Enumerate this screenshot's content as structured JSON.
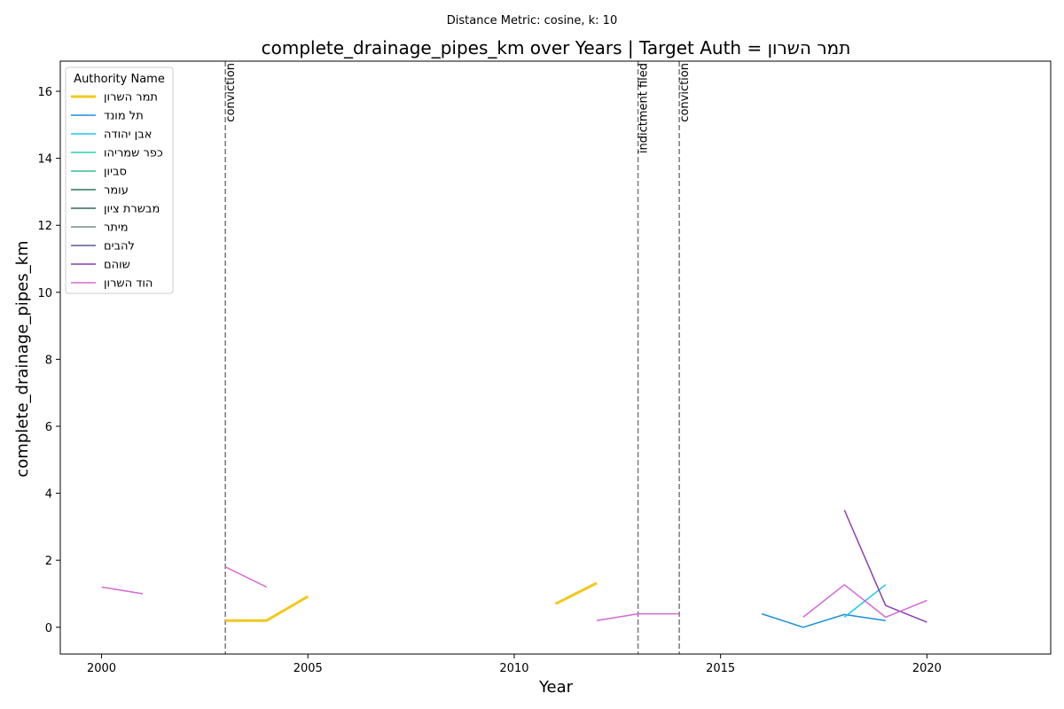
{
  "chart_data": {
    "type": "line",
    "suptitle": "Distance Metric: cosine, k: 10",
    "title": "complete_drainage_pipes_km over Years | Target Auth = תמר השרון",
    "xlabel": "Year",
    "ylabel": "complete_drainage_pipes_km",
    "xlim": [
      1999,
      2023
    ],
    "ylim": [
      -0.8,
      16.9
    ],
    "xticks": [
      2000,
      2005,
      2010,
      2015,
      2020
    ],
    "yticks": [
      0,
      2,
      4,
      6,
      8,
      10,
      12,
      14,
      16
    ],
    "grid": false,
    "legend_title": "Authority Name",
    "legend_position": "top-left",
    "events": [
      {
        "x": 2003,
        "label": "conviction"
      },
      {
        "x": 2013,
        "label": "indictment filed"
      },
      {
        "x": 2014,
        "label": "conviction"
      }
    ],
    "series": [
      {
        "name": "תמר השרון",
        "color": "#f2c81a",
        "width": 3,
        "segments": [
          [
            [
              2003,
              0.2
            ],
            [
              2004,
              0.2
            ],
            [
              2005,
              0.92
            ]
          ],
          [
            [
              2011,
              0.7
            ],
            [
              2012,
              1.32
            ]
          ]
        ]
      },
      {
        "name": "תל מונד",
        "color": "#1a8fd8",
        "width": 1.5,
        "segments": [
          [
            [
              2016,
              0.4
            ],
            [
              2017,
              0.0
            ],
            [
              2018,
              0.38
            ],
            [
              2019,
              0.2
            ]
          ]
        ]
      },
      {
        "name": "אבן יהודה",
        "color": "#1cc6ec",
        "width": 1.5,
        "segments": [
          [
            [
              2018,
              0.3
            ],
            [
              2019,
              1.27
            ]
          ]
        ]
      },
      {
        "name": "כפר שמריהו",
        "color": "#22d4b0",
        "width": 1.5,
        "segments": []
      },
      {
        "name": "סביון",
        "color": "#2ec48c",
        "width": 1.5,
        "segments": []
      },
      {
        "name": "עומר",
        "color": "#2a7a5a",
        "width": 1.5,
        "segments": []
      },
      {
        "name": "מבשרת ציון",
        "color": "#2e6a52",
        "width": 1.5,
        "segments": []
      },
      {
        "name": "מיתר",
        "color": "#7a8a82",
        "width": 1.5,
        "segments": []
      },
      {
        "name": "להבים",
        "color": "#5a5a9a",
        "width": 1.5,
        "segments": []
      },
      {
        "name": "שוהם",
        "color": "#8a3fb0",
        "width": 1.5,
        "segments": [
          [
            [
              2018,
              3.5
            ],
            [
              2019,
              0.65
            ],
            [
              2020,
              0.15
            ]
          ]
        ]
      },
      {
        "name": "הוד השרון",
        "color": "#d46ad6",
        "width": 1.5,
        "segments": [
          [
            [
              2000,
              1.2
            ],
            [
              2001,
              1.0
            ]
          ],
          [
            [
              2003,
              1.8
            ],
            [
              2004,
              1.2
            ]
          ],
          [
            [
              2012,
              0.2
            ],
            [
              2013,
              0.4
            ],
            [
              2014,
              0.4
            ]
          ],
          [
            [
              2017,
              0.3
            ],
            [
              2018,
              1.27
            ],
            [
              2019,
              0.3
            ],
            [
              2020,
              0.8
            ]
          ]
        ]
      }
    ]
  }
}
